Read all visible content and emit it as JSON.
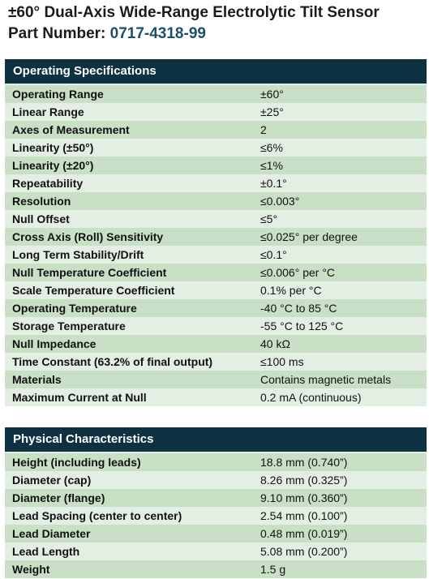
{
  "header": {
    "title": "±60° Dual-Axis Wide-Range Electrolytic Tilt Sensor",
    "part_label": "Part Number: ",
    "part_number": "0717-4318-99"
  },
  "operating": {
    "title": "Operating Specifications",
    "rows": [
      {
        "label": "Operating Range",
        "value": "±60°"
      },
      {
        "label": "Linear Range",
        "value": "±25°"
      },
      {
        "label": "Axes of Measurement",
        "value": "2"
      },
      {
        "label": "Linearity (±50°)",
        "value": "≤6%"
      },
      {
        "label": "Linearity (±20°)",
        "value": "≤1%"
      },
      {
        "label": "Repeatability",
        "value": "±0.1°"
      },
      {
        "label": "Resolution",
        "value": "≤0.003°"
      },
      {
        "label": "Null Offset",
        "value": "≤5°"
      },
      {
        "label": "Cross Axis (Roll) Sensitivity",
        "value": "≤0.025° per degree"
      },
      {
        "label": "Long Term Stability/Drift",
        "value": "≤0.1°"
      },
      {
        "label": "Null Temperature Coefficient",
        "value": "≤0.006° per °C"
      },
      {
        "label": "Scale Temperature Coefficient",
        "value": "0.1% per °C"
      },
      {
        "label": "Operating Temperature",
        "value": "-40 °C to 85 °C"
      },
      {
        "label": "Storage Temperature",
        "value": "-55 °C to 125 °C"
      },
      {
        "label": "Null Impedance",
        "value": "40 kΩ"
      },
      {
        "label": "Time Constant (63.2% of final output)",
        "value": "≤100 ms"
      },
      {
        "label": "Materials",
        "value": "Contains magnetic metals"
      },
      {
        "label": "Maximum Current at Null",
        "value": "0.2 mA (continuous)"
      }
    ]
  },
  "physical": {
    "title": "Physical Characteristics",
    "rows": [
      {
        "label": "Height (including leads)",
        "value": "18.8 mm (0.740”)"
      },
      {
        "label": "Diameter (cap)",
        "value": "8.26 mm (0.325”)"
      },
      {
        "label": "Diameter (flange)",
        "value": "9.10 mm (0.360”)"
      },
      {
        "label": "Lead Spacing (center to center)",
        "value": "2.54 mm (0.100”)"
      },
      {
        "label": "Lead Diameter",
        "value": "0.48 mm (0.019”)"
      },
      {
        "label": "Lead Length",
        "value": "5.08 mm (0.200”)"
      },
      {
        "label": "Weight",
        "value": "1.5 g"
      }
    ]
  },
  "colors": {
    "header_bg": "#0d3140",
    "row_alt": "#c9dfc6",
    "row_base": "#e4efe3",
    "part_number": "#1f4e6b"
  }
}
